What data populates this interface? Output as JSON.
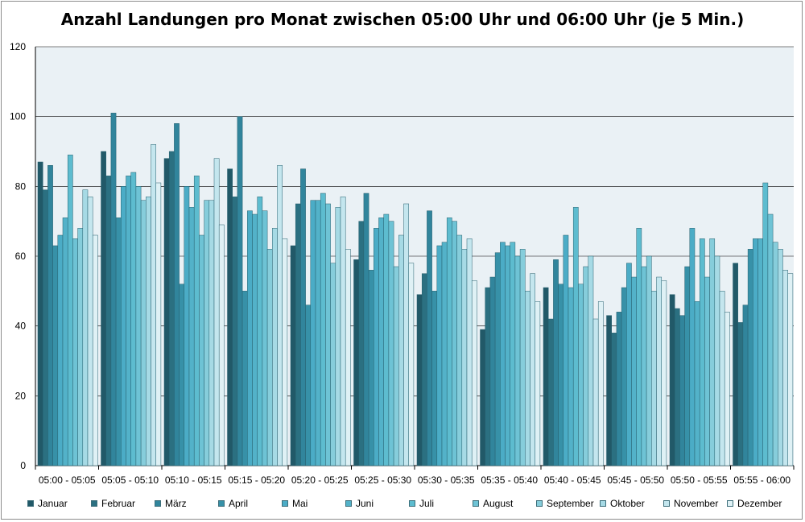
{
  "chart_data": {
    "type": "bar",
    "title": "Anzahl Landungen pro Monat zwischen 05:00 Uhr und 06:00 Uhr (je 5 Min.)",
    "xlabel": "",
    "ylabel": "",
    "ylim": [
      0,
      120
    ],
    "yticks": [
      "0",
      "20",
      "40",
      "60",
      "80",
      "100",
      "120"
    ],
    "grid": true,
    "legend_position": "bottom",
    "categories": [
      "05:00 - 05:05",
      "05:05 - 05:10",
      "05:10 - 05:15",
      "05:15 - 05:20",
      "05:20 - 05:25",
      "05:25 - 05:30",
      "05:30 - 05:35",
      "05:35 - 05:40",
      "05:40 - 05:45",
      "05:45 - 05:50",
      "05:50 - 05:55",
      "05:55 - 06:00"
    ],
    "series": [
      {
        "name": "Januar",
        "color": "#215968",
        "values": [
          87,
          90,
          88,
          85,
          63,
          59,
          49,
          39,
          51,
          43,
          49,
          58
        ]
      },
      {
        "name": "Februar",
        "color": "#2b7081",
        "values": [
          79,
          83,
          90,
          77,
          75,
          70,
          55,
          51,
          42,
          38,
          45,
          41
        ]
      },
      {
        "name": "März",
        "color": "#31859c",
        "values": [
          86,
          101,
          98,
          100,
          85,
          78,
          73,
          54,
          59,
          44,
          43,
          46
        ]
      },
      {
        "name": "April",
        "color": "#3791a8",
        "values": [
          63,
          71,
          52,
          50,
          46,
          56,
          50,
          61,
          52,
          51,
          57,
          62
        ]
      },
      {
        "name": "Mai",
        "color": "#4bacc6",
        "values": [
          66,
          80,
          80,
          73,
          76,
          68,
          63,
          64,
          66,
          58,
          68,
          65
        ]
      },
      {
        "name": "Juni",
        "color": "#53b2c9",
        "values": [
          71,
          83,
          74,
          72,
          76,
          71,
          64,
          63,
          51,
          54,
          47,
          65
        ]
      },
      {
        "name": "Juli",
        "color": "#5dbccf",
        "values": [
          89,
          84,
          83,
          77,
          78,
          72,
          71,
          64,
          74,
          68,
          65,
          81
        ]
      },
      {
        "name": "August",
        "color": "#6ec3d5",
        "values": [
          65,
          80,
          66,
          73,
          75,
          70,
          70,
          60,
          52,
          57,
          54,
          72
        ]
      },
      {
        "name": "September",
        "color": "#86cddb",
        "values": [
          68,
          76,
          76,
          62,
          58,
          57,
          66,
          62,
          57,
          60,
          65,
          64
        ]
      },
      {
        "name": "Oktober",
        "color": "#a6dae5",
        "values": [
          79,
          77,
          76,
          68,
          74,
          66,
          62,
          50,
          60,
          50,
          60,
          62
        ]
      },
      {
        "name": "November",
        "color": "#c4e6ee",
        "values": [
          77,
          92,
          88,
          86,
          77,
          75,
          65,
          55,
          42,
          54,
          50,
          56
        ]
      },
      {
        "name": "Dezember",
        "color": "#dff1f5",
        "values": [
          66,
          81,
          69,
          65,
          62,
          58,
          53,
          47,
          47,
          53,
          44,
          55
        ]
      }
    ]
  }
}
